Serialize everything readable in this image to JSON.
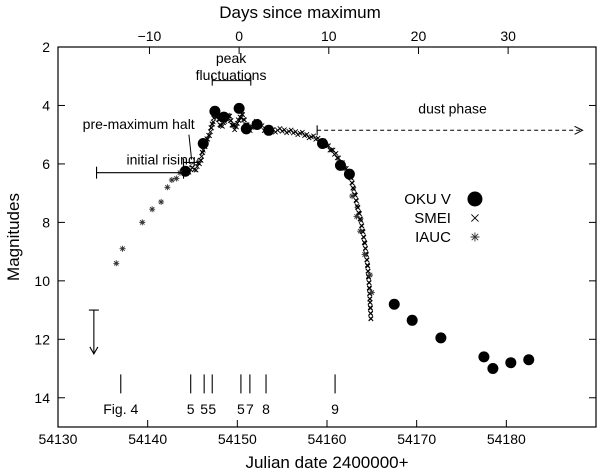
{
  "chart_data": {
    "type": "scatter",
    "title": "",
    "xlabel": "Julian date 2400000+",
    "ylabel": "Magnitudes",
    "x2label": "Days since maximum",
    "xlim": [
      54130,
      54190
    ],
    "ylim": [
      15,
      2
    ],
    "x2_zero": 54150.2,
    "xticks": [
      54130,
      54140,
      54150,
      54160,
      54170,
      54180
    ],
    "yticks": [
      2,
      4,
      6,
      8,
      10,
      12,
      14
    ],
    "x2ticks": [
      -10,
      0,
      10,
      20,
      30
    ],
    "legend": {
      "position": "right",
      "entries": [
        {
          "label": "OKU V",
          "marker": "filled-circle"
        },
        {
          "label": "SMEI",
          "marker": "cross"
        },
        {
          "label": "IAUC",
          "marker": "asterisk"
        }
      ]
    },
    "series": [
      {
        "name": "OKU V",
        "marker": "filled-circle",
        "points": [
          [
            54144.2,
            6.25
          ],
          [
            54146.2,
            5.3
          ],
          [
            54147.5,
            4.2
          ],
          [
            54148.5,
            4.4
          ],
          [
            54150.2,
            4.1
          ],
          [
            54151.0,
            4.8
          ],
          [
            54152.2,
            4.65
          ],
          [
            54153.5,
            4.85
          ],
          [
            54159.5,
            5.3
          ],
          [
            54161.5,
            6.05
          ],
          [
            54162.5,
            6.35
          ],
          [
            54167.5,
            10.8
          ],
          [
            54169.5,
            11.35
          ],
          [
            54172.7,
            11.95
          ],
          [
            54177.5,
            12.6
          ],
          [
            54178.5,
            13.0
          ],
          [
            54180.5,
            12.8
          ],
          [
            54182.5,
            12.7
          ]
        ]
      },
      {
        "name": "SMEI",
        "marker": "cross",
        "segments": [
          [
            [
              54144.0,
              6.3
            ],
            [
              54144.8,
              6.2
            ],
            [
              54145.4,
              6.15
            ],
            [
              54145.9,
              5.9
            ],
            [
              54146.2,
              5.5
            ],
            [
              54146.6,
              5.2
            ],
            [
              54147.0,
              4.9
            ],
            [
              54147.3,
              4.5
            ],
            [
              54147.6,
              4.25
            ],
            [
              54147.9,
              4.45
            ],
            [
              54148.2,
              4.75
            ],
            [
              54148.6,
              4.55
            ],
            [
              54149.0,
              4.3
            ],
            [
              54149.3,
              4.55
            ],
            [
              54149.7,
              4.8
            ],
            [
              54150.1,
              4.55
            ],
            [
              54150.5,
              4.3
            ],
            [
              54150.9,
              4.6
            ],
            [
              54151.3,
              4.85
            ],
            [
              54151.7,
              4.7
            ],
            [
              54152.1,
              4.6
            ],
            [
              54152.5,
              4.7
            ],
            [
              54153.0,
              4.8
            ],
            [
              54154.0,
              4.85
            ],
            [
              54155.0,
              4.85
            ],
            [
              54156.0,
              4.9
            ],
            [
              54157.0,
              4.95
            ],
            [
              54158.0,
              5.05
            ],
            [
              54159.0,
              5.15
            ],
            [
              54160.0,
              5.35
            ],
            [
              54161.0,
              5.7
            ],
            [
              54162.0,
              6.15
            ],
            [
              54162.6,
              6.4
            ],
            [
              54163.0,
              6.9
            ],
            [
              54163.4,
              7.45
            ],
            [
              54163.8,
              8.0
            ],
            [
              54164.2,
              8.7
            ],
            [
              54164.5,
              9.4
            ],
            [
              54164.7,
              10.1
            ],
            [
              54164.8,
              10.7
            ],
            [
              54164.9,
              11.3
            ]
          ]
        ]
      },
      {
        "name": "IAUC",
        "marker": "asterisk",
        "points": [
          [
            54136.5,
            9.4
          ],
          [
            54137.2,
            8.9
          ],
          [
            54139.4,
            8.0
          ],
          [
            54140.5,
            7.55
          ],
          [
            54141.5,
            7.3
          ],
          [
            54142.2,
            6.8
          ],
          [
            54142.7,
            6.55
          ],
          [
            54143.2,
            6.5
          ],
          [
            54143.6,
            6.3
          ],
          [
            54162.8,
            7.1
          ],
          [
            54163.3,
            7.8
          ],
          [
            54163.7,
            8.3
          ],
          [
            54164.2,
            9.1
          ],
          [
            54164.8,
            9.8
          ],
          [
            54165.0,
            10.4
          ]
        ]
      }
    ],
    "annotations": {
      "initial_rising": {
        "label": "initial rising",
        "from": 54134.3,
        "to": 54144.0,
        "y": 6.3
      },
      "pre_maximum_halt": {
        "label": "pre-maximum halt",
        "from": 54144.0,
        "to": 54145.6,
        "y": 5.95
      },
      "peak_fluctuations": {
        "label1": "peak",
        "label2": "fluctuations",
        "from": 54147.2,
        "to": 54151.5,
        "y": 3.15
      },
      "dust_phase": {
        "label": "dust phase",
        "from": 54158.9,
        "to": 54188.5,
        "y": 4.85
      },
      "upper_limit": {
        "x": 54134.0,
        "from": 11.0,
        "to": 12.5
      },
      "fig_markers": [
        {
          "x": 54137.0,
          "label": "Fig. 4"
        },
        {
          "x": 54144.8,
          "label": "5"
        },
        {
          "x": 54146.3,
          "label": "5"
        },
        {
          "x": 54147.2,
          "label": "5"
        },
        {
          "x": 54150.4,
          "label": "5"
        },
        {
          "x": 54151.4,
          "label": "7"
        },
        {
          "x": 54153.2,
          "label": "8"
        },
        {
          "x": 54160.9,
          "label": "9"
        }
      ]
    }
  }
}
